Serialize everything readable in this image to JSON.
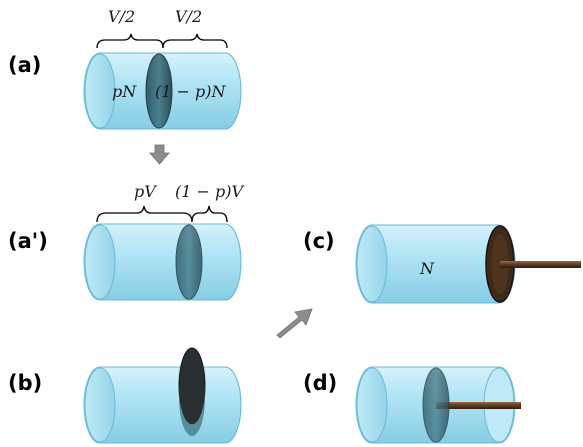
{
  "panels": {
    "a": {
      "label": "(a)",
      "brace_left_math": "V/2",
      "brace_right_math": "V/2",
      "left_gas": "pN",
      "right_gas": "(1 − p)N"
    },
    "a_prime": {
      "label": "(a')",
      "brace_left_math": "pV",
      "brace_right_math": "(1 − p)V"
    },
    "b": {
      "label": "(b)"
    },
    "c": {
      "label": "(c)",
      "gas": "N"
    },
    "d": {
      "label": "(d)"
    }
  },
  "colors": {
    "cylinder_fill": "#a9e0f1",
    "cylinder_stroke": "#5aaecb",
    "partition": "#3f6e7c",
    "partition_dark": "#1f2a2e",
    "arrow": "#8c8c8c",
    "rod": "#5a3a22"
  }
}
